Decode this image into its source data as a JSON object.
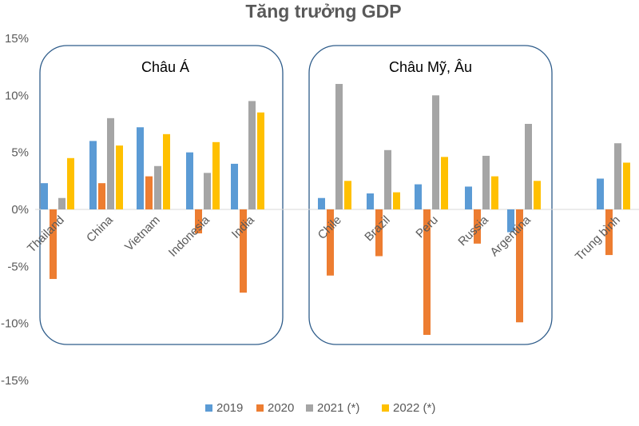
{
  "chart_data": {
    "type": "bar",
    "title": "Tăng trưởng GDP",
    "xlabel": "",
    "ylabel": "",
    "ylim": [
      -15,
      15
    ],
    "yticks": [
      "15%",
      "10%",
      "5%",
      "0%",
      "-5%",
      "-10%",
      "-15%"
    ],
    "categories": [
      "Thailand",
      "China",
      "Vietnam",
      "Indonesia",
      "India",
      "Chile",
      "Brazil",
      "Peru",
      "Russia",
      "Argentina",
      "Trung bình"
    ],
    "series": [
      {
        "name": "2019",
        "color": "#5B9BD5",
        "values": [
          2.3,
          6.0,
          7.2,
          5.0,
          4.0,
          1.0,
          1.4,
          2.2,
          2.0,
          -2.0,
          2.7
        ]
      },
      {
        "name": "2020",
        "color": "#ED7D31",
        "values": [
          -6.1,
          2.3,
          2.9,
          -2.1,
          -7.3,
          -5.8,
          -4.1,
          -11.0,
          -3.0,
          -9.9,
          -4.0
        ]
      },
      {
        "name": "2021 (*)",
        "color": "#A5A5A5",
        "values": [
          1.0,
          8.0,
          3.8,
          3.2,
          9.5,
          11.0,
          5.2,
          10.0,
          4.7,
          7.5,
          5.8
        ]
      },
      {
        "name": "2022 (*)",
        "color": "#FFC000",
        "values": [
          4.5,
          5.6,
          6.6,
          5.9,
          8.5,
          2.5,
          1.5,
          4.6,
          2.9,
          2.5,
          4.1
        ]
      }
    ],
    "regions": [
      {
        "label": "Châu Á"
      },
      {
        "label": "Châu Mỹ, Âu"
      }
    ],
    "legend_position": "bottom",
    "grid": false
  }
}
